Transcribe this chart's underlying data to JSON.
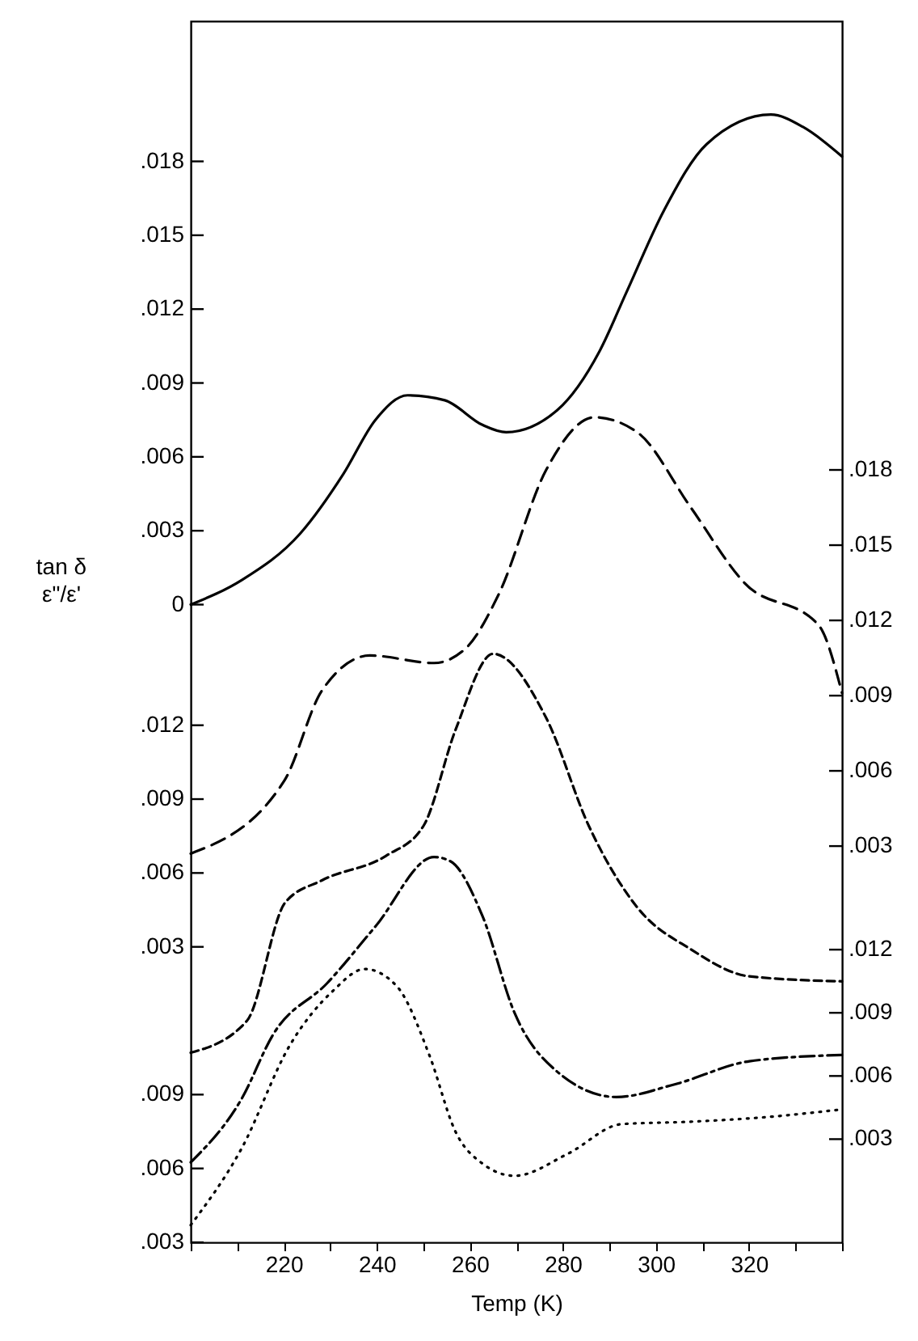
{
  "chart_data": [
    {
      "type": "line",
      "xlabel": "Temp (K)",
      "ylabel": "tan δ\nε\"/ε'",
      "grid": false,
      "marker": "none",
      "xlim": [
        200,
        340
      ],
      "xticks": [
        {
          "value": 200,
          "label": null
        },
        {
          "value": 210,
          "label": null
        },
        220,
        {
          "value": 230,
          "label": null
        },
        240,
        {
          "value": 250,
          "label": null
        },
        260,
        {
          "value": 270,
          "label": null
        },
        280,
        {
          "value": 290,
          "label": null
        },
        300,
        {
          "value": 310,
          "label": null
        },
        320,
        {
          "value": 330,
          "label": null
        },
        {
          "value": 340,
          "label": null
        }
      ],
      "ylim": [
        -0.0259,
        0.0237
      ],
      "yticks": [
        {
          "value": 0,
          "label": "0"
        },
        {
          "value": 0.003,
          "label": ".003"
        },
        {
          "value": 0.006,
          "label": ".006"
        },
        {
          "value": 0.009,
          "label": ".009"
        },
        {
          "value": 0.012,
          "label": ".012"
        },
        {
          "value": 0.015,
          "label": ".015"
        },
        {
          "value": 0.018,
          "label": ".018"
        }
      ],
      "y2lim": [
        -0.0128,
        0.0359
      ],
      "y2ticks": [
        {
          "value": 0.003,
          "label": ".003"
        },
        {
          "value": 0.006,
          "label": ".006"
        },
        {
          "value": 0.009,
          "label": ".009"
        },
        {
          "value": 0.012,
          "label": ".012"
        },
        {
          "value": 0.015,
          "label": ".015"
        },
        {
          "value": 0.018,
          "label": ".018"
        }
      ],
      "y3lim": [
        -0.009,
        0.0406
      ],
      "y3ticks": [
        {
          "value": 0.003,
          "label": ".003"
        },
        {
          "value": 0.006,
          "label": ".006"
        },
        {
          "value": 0.009,
          "label": ".009"
        },
        {
          "value": 0.012,
          "label": ".012"
        }
      ],
      "series": [
        {
          "line_style": "solid",
          "color": "#000000",
          "x": [
            200,
            211,
            223.6,
            232.8,
            239.7,
            246.6,
            254.6,
            262.7,
            267.8,
            278.8,
            287.9,
            293.7,
            301.7,
            310.9,
            324.7,
            331.6,
            340
          ],
          "values": [
            0,
            0.001,
            0.0029,
            0.0053,
            0.0075,
            0.0085,
            0.0083,
            0.0073,
            0.007,
            0.0079,
            0.0103,
            0.0127,
            0.016,
            0.0187,
            0.0199,
            0.0194,
            0.0182
          ]
        },
        {
          "axis": "y2",
          "line_style": "dashed",
          "color": "#000000",
          "x": [
            200,
            220.1,
            228.2,
            238.5,
            252.3,
            259.2,
            266.1,
            276.4,
            286.8,
            296,
            307.5,
            319,
            335,
            340
          ],
          "values": [
            0.0027,
            0.0056,
            0.0092,
            0.0106,
            0.0103,
            0.0109,
            0.013,
            0.018,
            0.0201,
            0.0195,
            0.0165,
            0.0135,
            0.0118,
            0.0091
          ]
        },
        {
          "axis": "y3",
          "line_style": "shortdash",
          "color": "#000000",
          "x": [
            200,
            212.1,
            220.3,
            228.2,
            242,
            250,
            256.9,
            265,
            276.4,
            285.6,
            296,
            307.5,
            320.1,
            340
          ],
          "values": [
            -0.0013,
            0,
            0.0048,
            0.0057,
            0.0067,
            0.0079,
            0.0118,
            0.0149,
            0.0123,
            0.0079,
            0.0046,
            0.0029,
            0.0018,
            0.0016
          ]
        }
      ]
    },
    {
      "type": "line",
      "marker": "none",
      "xlim": [
        200,
        340
      ],
      "ylim": [
        0.003,
        0.0526
      ],
      "yticks": [
        {
          "value": 0.003,
          "label": ".003"
        },
        {
          "value": 0.006,
          "label": ".006"
        },
        {
          "value": 0.009,
          "label": ".009"
        }
      ],
      "y2lim": [
        -0.0019,
        0.0561
      ],
      "y2ticks": [
        {
          "value": 0.003,
          "label": ".003"
        },
        {
          "value": 0.006,
          "label": ".006"
        },
        {
          "value": 0.009,
          "label": ".009"
        },
        {
          "value": 0.012,
          "label": ".012"
        }
      ],
      "series": [
        {
          "line_style": "dotted",
          "color": "#000000",
          "x": [
            200,
            210.9,
            221.3,
            230.5,
            237.4,
            244.3,
            251.3,
            256.9,
            262.7,
            269.6,
            281.1,
            292.6,
            307.5,
            324.7,
            340
          ],
          "values": [
            0.0037,
            0.0068,
            0.011,
            0.0132,
            0.0141,
            0.0134,
            0.0106,
            0.0075,
            0.0062,
            0.0057,
            0.0066,
            0.0078,
            0.0079,
            0.0081,
            0.0084
          ]
        },
        {
          "axis": "y2",
          "line_style": "dashdot",
          "color": "#000000",
          "x": [
            200,
            210.9,
            217.8,
            229.3,
            239.7,
            252.3,
            255.8,
            262.7,
            269.6,
            278.8,
            291.5,
            304,
            320.1,
            340
          ],
          "values": [
            0.0019,
            0.0049,
            0.008,
            0.0104,
            0.0131,
            0.0164,
            0.0162,
            0.0136,
            0.009,
            0.0062,
            0.005,
            0.0056,
            0.0067,
            0.007
          ]
        }
      ]
    }
  ]
}
